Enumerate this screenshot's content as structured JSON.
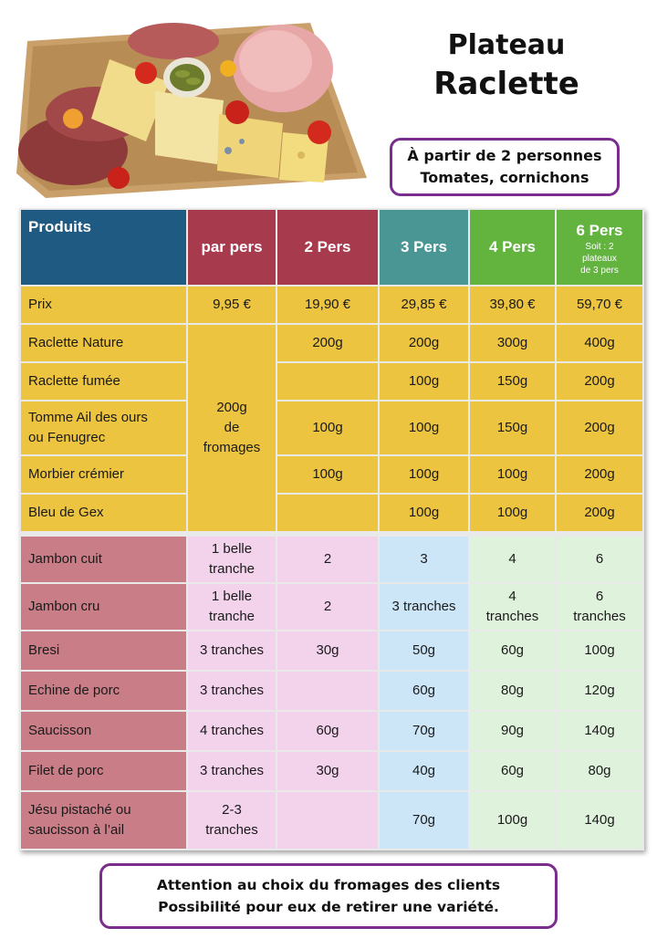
{
  "title": {
    "line1": "Plateau",
    "line2": "Raclette"
  },
  "info": {
    "line1": "À partir de 2 personnes",
    "line2": "Tomates, cornichons"
  },
  "header": {
    "produits": "Produits",
    "par_pers": "par pers",
    "p2": "2 Pers",
    "p3": "3 Pers",
    "p4": "4 Pers",
    "p6": "6 Pers",
    "p6_note_1": "Soit : 2",
    "p6_note_2": "plateaux",
    "p6_note_3": "de 3 pers"
  },
  "colors": {
    "header_produits": "#1e5a82",
    "header_red": "#a83a4d",
    "header_teal": "#4a9694",
    "header_green": "#63b33f",
    "cheese_row": "#ecc440",
    "meat_label": "#c97d87",
    "meat_pink": "#f3d2ec",
    "meat_blue": "#cde6f7",
    "meat_green": "#dff2dc",
    "border_purple": "#7a2d8c"
  },
  "price_row": {
    "label": "Prix",
    "par": "9,95 €",
    "p2": "19,90 €",
    "p3": "29,85 €",
    "p4": "39,80 €",
    "p6": "59,70 €"
  },
  "cheese_par": {
    "line1": "200g",
    "line2": "de",
    "line3": "fromages"
  },
  "cheese_rows": [
    {
      "label1": "Raclette Nature",
      "label2": "",
      "p2": "200g",
      "p3": "200g",
      "p4": "300g",
      "p6": "400g"
    },
    {
      "label1": "Raclette fumée",
      "label2": "",
      "p2": "",
      "p3": "100g",
      "p4": "150g",
      "p6": "200g"
    },
    {
      "label1": "Tomme Ail des ours",
      "label2": "ou Fenugrec",
      "p2": "100g",
      "p3": "100g",
      "p4": "150g",
      "p6": "200g"
    },
    {
      "label1": "Morbier crémier",
      "label2": "",
      "p2": "100g",
      "p3": "100g",
      "p4": "100g",
      "p6": "200g"
    },
    {
      "label1": "Bleu de Gex",
      "label2": "",
      "p2": "",
      "p3": "100g",
      "p4": "100g",
      "p6": "200g"
    }
  ],
  "meat_rows": [
    {
      "label1": "Jambon cuit",
      "label2": "",
      "par1": "1 belle",
      "par2": "tranche",
      "p2": "2",
      "p3": "3",
      "p4_1": "4",
      "p4_2": "",
      "p6_1": "6",
      "p6_2": ""
    },
    {
      "label1": "Jambon cru",
      "label2": "",
      "par1": "1 belle",
      "par2": "tranche",
      "p2": "2",
      "p3": "3 tranches",
      "p4_1": "4",
      "p4_2": "tranches",
      "p6_1": "6",
      "p6_2": "tranches"
    },
    {
      "label1": "Bresi",
      "label2": "",
      "par1": "3 tranches",
      "par2": "",
      "p2": "30g",
      "p3": "50g",
      "p4_1": "60g",
      "p4_2": "",
      "p6_1": "100g",
      "p6_2": ""
    },
    {
      "label1": "Echine de porc",
      "label2": "",
      "par1": "3 tranches",
      "par2": "",
      "p2": "",
      "p3": "60g",
      "p4_1": "80g",
      "p4_2": "",
      "p6_1": "120g",
      "p6_2": ""
    },
    {
      "label1": "Saucisson",
      "label2": "",
      "par1": "4 tranches",
      "par2": "",
      "p2": "60g",
      "p3": "70g",
      "p4_1": "90g",
      "p4_2": "",
      "p6_1": "140g",
      "p6_2": ""
    },
    {
      "label1": "Filet de porc",
      "label2": "",
      "par1": "3 tranches",
      "par2": "",
      "p2": "30g",
      "p3": "40g",
      "p4_1": "60g",
      "p4_2": "",
      "p6_1": "80g",
      "p6_2": ""
    },
    {
      "label1": "Jésu pistaché ou",
      "label2": "saucisson à l’ail",
      "par1": "2-3",
      "par2": "tranches",
      "p2": "",
      "p3": "70g",
      "p4_1": "100g",
      "p4_2": "",
      "p6_1": "140g",
      "p6_2": ""
    }
  ],
  "footer": {
    "line1": "Attention au choix du fromages des clients",
    "line2": "Possibilité pour eux de retirer une variété."
  }
}
